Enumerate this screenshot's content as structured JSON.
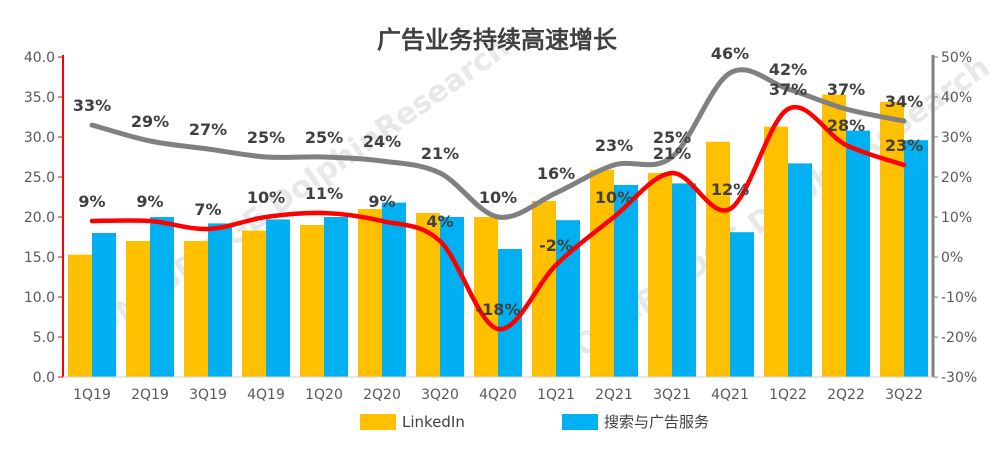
{
  "chart_data": {
    "type": "bar",
    "title": "广告业务持续高速增长",
    "categories": [
      "1Q19",
      "2Q19",
      "3Q19",
      "4Q19",
      "1Q20",
      "2Q20",
      "3Q20",
      "4Q20",
      "1Q21",
      "2Q21",
      "3Q21",
      "4Q21",
      "1Q22",
      "2Q22",
      "3Q22"
    ],
    "ylim": [
      0,
      40
    ],
    "y_ticks": [
      "0.0",
      "5.0",
      "10.0",
      "15.0",
      "20.0",
      "25.0",
      "30.0",
      "35.0",
      "40.0"
    ],
    "y2lim": [
      -30,
      50
    ],
    "y2_ticks": [
      "-30%",
      "-20%",
      "-10%",
      "0%",
      "10%",
      "20%",
      "30%",
      "40%",
      "50%"
    ],
    "legend_position": "bottom",
    "grid": false,
    "series": [
      {
        "name": "LinkedIn",
        "type": "bar",
        "axis": "left",
        "color": "#FFC000",
        "values": [
          15.3,
          17.0,
          17.0,
          18.3,
          19.0,
          21.0,
          20.5,
          20.0,
          22.0,
          25.9,
          25.5,
          29.4,
          31.3,
          35.3,
          34.4
        ]
      },
      {
        "name": "搜索与广告服务",
        "type": "bar",
        "axis": "left",
        "color": "#00B0F0",
        "values": [
          18.0,
          20.0,
          19.2,
          19.7,
          20.0,
          21.8,
          20.0,
          16.0,
          19.6,
          24.0,
          24.2,
          18.1,
          26.7,
          30.8,
          29.6
        ]
      },
      {
        "type": "line",
        "axis": "right",
        "color": "#808080",
        "values": [
          33,
          29,
          27,
          25,
          25,
          24,
          21,
          10,
          16,
          23,
          25,
          46,
          42,
          37,
          34
        ],
        "labels": [
          "33%",
          "29%",
          "27%",
          "25%",
          "25%",
          "24%",
          "21%",
          "10%",
          "16%",
          "23%",
          "25%",
          "46%",
          "42%",
          "37%",
          "34%"
        ]
      },
      {
        "type": "line",
        "axis": "right",
        "color": "#FF0000",
        "values": [
          9,
          9,
          7,
          10,
          11,
          9,
          4,
          -18,
          -2,
          10,
          21,
          12,
          37,
          28,
          23
        ],
        "labels": [
          "9%",
          "9%",
          "7%",
          "10%",
          "11%",
          "9%",
          "4%",
          "-18%",
          "-2%",
          "10%",
          "21%",
          "12%",
          "37%",
          "28%",
          "23%"
        ]
      }
    ]
  },
  "watermark": "LONGBRIDGE DolphinResearch"
}
